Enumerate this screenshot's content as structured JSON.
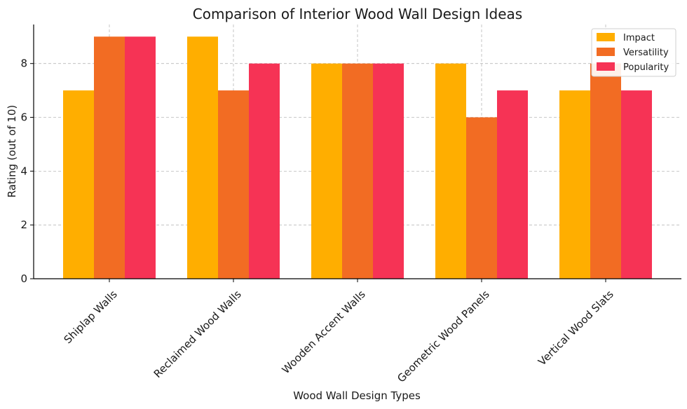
{
  "chart_data": {
    "type": "bar",
    "title": "Comparison of Interior Wood Wall Design Ideas",
    "xlabel": "Wood Wall Design Types",
    "ylabel": "Rating (out of 10)",
    "categories": [
      "Shiplap Walls",
      "Reclaimed Wood Walls",
      "Wooden Accent Walls",
      "Geometric Wood Panels",
      "Vertical Wood Slats"
    ],
    "series": [
      {
        "name": "Impact",
        "color": "#FFAE00",
        "values": [
          7,
          9,
          8,
          8,
          7
        ]
      },
      {
        "name": "Versatility",
        "color": "#F26C23",
        "values": [
          9,
          7,
          8,
          6,
          8
        ]
      },
      {
        "name": "Popularity",
        "color": "#F63355",
        "values": [
          9,
          8,
          8,
          7,
          7
        ]
      }
    ],
    "ylim": [
      0,
      9.45
    ],
    "yticks": [
      0,
      2,
      4,
      6,
      8
    ],
    "grid": true,
    "legend_position": "top-right"
  }
}
